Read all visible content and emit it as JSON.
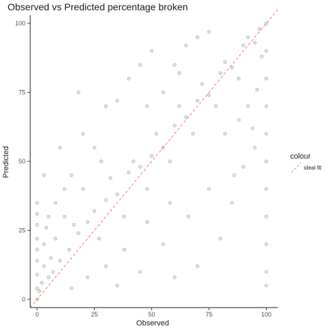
{
  "chart_data": {
    "type": "scatter",
    "title": "Observed vs Predicted percentage broken",
    "xlabel": "Observed",
    "ylabel": "Predicted",
    "xlim": [
      -3,
      105
    ],
    "ylim": [
      -3,
      103
    ],
    "xticks": [
      0,
      25,
      50,
      75,
      100
    ],
    "yticks": [
      0,
      25,
      50,
      75,
      100
    ],
    "grid": false,
    "legend": {
      "title": "colour",
      "entries": [
        "ideal fit"
      ],
      "position": "right"
    },
    "series": [
      {
        "name": "",
        "color": "#000000",
        "opacity": 0.12,
        "note_points": "dense point cloud concentrated along the diagonal; sample points listed",
        "points": [
          [
            0,
            0
          ],
          [
            0,
            4
          ],
          [
            0,
            9
          ],
          [
            0,
            14
          ],
          [
            0,
            18
          ],
          [
            0,
            22
          ],
          [
            0,
            27
          ],
          [
            0,
            31
          ],
          [
            0,
            35
          ],
          [
            1,
            3
          ],
          [
            2,
            6
          ],
          [
            3,
            12
          ],
          [
            3,
            20
          ],
          [
            4,
            26
          ],
          [
            5,
            8
          ],
          [
            6,
            15
          ],
          [
            7,
            10
          ],
          [
            8,
            22
          ],
          [
            10,
            14
          ],
          [
            12,
            30
          ],
          [
            14,
            18
          ],
          [
            16,
            27
          ],
          [
            18,
            24
          ],
          [
            20,
            40
          ],
          [
            22,
            28
          ],
          [
            25,
            32
          ],
          [
            27,
            22
          ],
          [
            30,
            36
          ],
          [
            32,
            44
          ],
          [
            35,
            38
          ],
          [
            38,
            30
          ],
          [
            40,
            46
          ],
          [
            42,
            50
          ],
          [
            45,
            48
          ],
          [
            48,
            40
          ],
          [
            50,
            52
          ],
          [
            52,
            60
          ],
          [
            55,
            55
          ],
          [
            58,
            50
          ],
          [
            60,
            63
          ],
          [
            62,
            70
          ],
          [
            65,
            66
          ],
          [
            68,
            60
          ],
          [
            70,
            72
          ],
          [
            72,
            78
          ],
          [
            75,
            74
          ],
          [
            78,
            70
          ],
          [
            80,
            82
          ],
          [
            82,
            86
          ],
          [
            85,
            84
          ],
          [
            88,
            80
          ],
          [
            90,
            92
          ],
          [
            92,
            95
          ],
          [
            95,
            93
          ],
          [
            97,
            98
          ],
          [
            100,
            100
          ],
          [
            100,
            90
          ],
          [
            100,
            80
          ],
          [
            100,
            70
          ],
          [
            100,
            60
          ],
          [
            100,
            50
          ],
          [
            100,
            40
          ],
          [
            100,
            30
          ],
          [
            100,
            20
          ],
          [
            100,
            10
          ],
          [
            100,
            5
          ],
          [
            98,
            88
          ],
          [
            96,
            76
          ],
          [
            94,
            62
          ],
          [
            90,
            48
          ],
          [
            85,
            35
          ],
          [
            80,
            22
          ],
          [
            70,
            12
          ],
          [
            60,
            8
          ],
          [
            55,
            20
          ],
          [
            45,
            10
          ],
          [
            35,
            5
          ],
          [
            15,
            45
          ],
          [
            10,
            55
          ],
          [
            20,
            60
          ],
          [
            30,
            70
          ],
          [
            25,
            55
          ],
          [
            35,
            72
          ],
          [
            40,
            80
          ],
          [
            45,
            85
          ],
          [
            50,
            90
          ],
          [
            18,
            75
          ],
          [
            12,
            40
          ],
          [
            8,
            35
          ],
          [
            5,
            30
          ],
          [
            3,
            45
          ],
          [
            28,
            50
          ],
          [
            48,
            70
          ],
          [
            60,
            85
          ],
          [
            65,
            92
          ],
          [
            70,
            95
          ],
          [
            75,
            97
          ],
          [
            55,
            75
          ],
          [
            62,
            82
          ],
          [
            82,
            60
          ],
          [
            88,
            65
          ],
          [
            92,
            70
          ],
          [
            95,
            55
          ],
          [
            86,
            45
          ],
          [
            75,
            40
          ],
          [
            66,
            30
          ],
          [
            58,
            35
          ],
          [
            48,
            28
          ],
          [
            38,
            18
          ],
          [
            30,
            12
          ],
          [
            22,
            8
          ],
          [
            15,
            4
          ]
        ]
      }
    ],
    "reference_line": {
      "name": "ideal fit",
      "color": "#f8766d",
      "dash": "dashed",
      "slope": 1,
      "intercept": 0
    }
  }
}
